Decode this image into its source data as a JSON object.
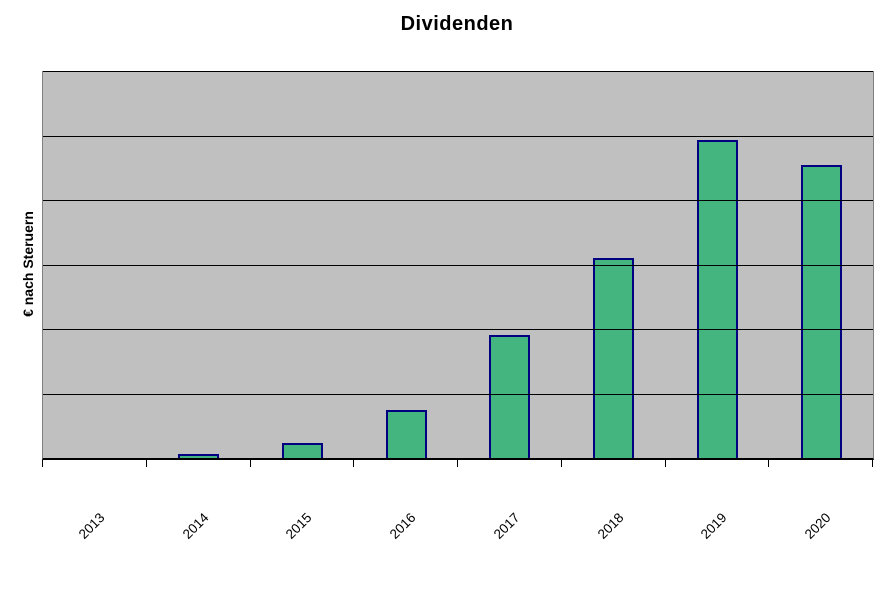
{
  "window": {
    "background": "#FFFFFF"
  },
  "chart_data": {
    "type": "bar",
    "title": "Dividenden",
    "xlabel": "",
    "ylabel": "€ nach Steruern",
    "categories": [
      "2013",
      "2014",
      "2015",
      "2016",
      "2017",
      "2018",
      "2019",
      "2020"
    ],
    "series": [
      {
        "name": "Dividenden",
        "values": [
          0,
          0.06,
          0.23,
          0.74,
          1.9,
          3.1,
          4.93,
          4.54
        ]
      }
    ],
    "values_unit": "gridline divisions (y axis shows no numeric tick labels; values estimated from gridlines)",
    "ylim": [
      0,
      6
    ],
    "y_tick_labels": [],
    "grid": "horizontal",
    "gridline_divisions": 6,
    "gridlines_drawn_over_bars": true,
    "legend_position": "none",
    "colors": {
      "bar_fill": "#44B57E",
      "bar_border": "#000080",
      "plot_background": "#C0C0C0",
      "gridline": "#000000",
      "axis_line": "#000000",
      "plot_side_border": "#808080",
      "page_background": "#FFFFFF",
      "text": "#000000"
    }
  }
}
